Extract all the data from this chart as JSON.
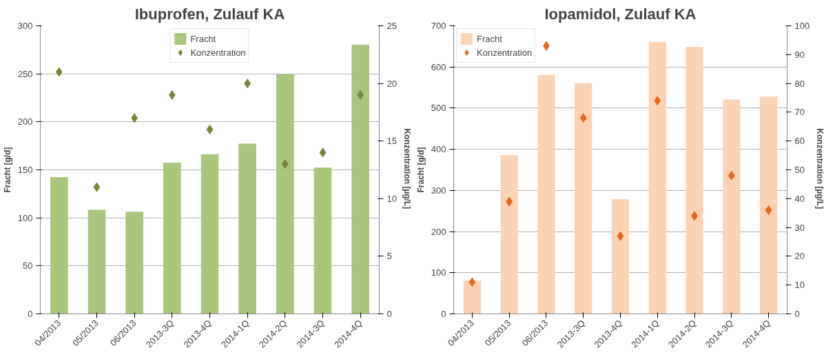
{
  "chart_data": [
    {
      "type": "bar",
      "title": "Ibuprofen, Zulauf KA",
      "ylabel": "Fracht [g/d]",
      "y2label": "Konzentration  [µg/L]",
      "categories": [
        "04/2013",
        "05/2013",
        "06/2013",
        "2013-3Q",
        "2013-4Q",
        "2014-1Q",
        "2014-2Q",
        "2014-3Q",
        "2014-4Q"
      ],
      "series": [
        {
          "name": "Fracht",
          "color": "#a8c67c",
          "values": [
            142,
            108,
            106,
            157,
            166,
            177,
            249,
            152,
            280
          ]
        },
        {
          "name": "Konzentration",
          "type": "scatter",
          "axis": "y2",
          "color": "#77853a",
          "values": [
            21,
            11,
            17,
            19,
            16,
            20,
            13,
            14,
            19
          ]
        }
      ],
      "ylim": [
        0,
        300
      ],
      "yticks": [
        0,
        50,
        100,
        150,
        200,
        250,
        300
      ],
      "y2lim": [
        0,
        25
      ],
      "y2ticks": [
        0,
        5,
        10,
        15,
        20,
        25
      ],
      "grid": "y",
      "legend": "top",
      "marker": "diamond"
    },
    {
      "type": "bar",
      "title": "Iopamidol, Zulauf KA",
      "ylabel": "Fracht [g/d]",
      "y2label": "Konzentration  [µg/L]",
      "categories": [
        "04/2013",
        "05/2013",
        "06/2013",
        "2013-3Q",
        "2013-4Q",
        "2014-1Q",
        "2014-2Q",
        "2014-3Q",
        "2014-4Q"
      ],
      "series": [
        {
          "name": "Fracht",
          "color": "#fbd3b3",
          "values": [
            80,
            385,
            580,
            560,
            278,
            660,
            648,
            520,
            527
          ]
        },
        {
          "name": "Konzentration",
          "type": "scatter",
          "axis": "y2",
          "color": "#e8661c",
          "values": [
            11,
            39,
            93,
            68,
            27,
            74,
            34,
            48,
            36
          ]
        }
      ],
      "ylim": [
        0,
        700
      ],
      "yticks": [
        0,
        100,
        200,
        300,
        400,
        500,
        600,
        700
      ],
      "y2lim": [
        0,
        100
      ],
      "y2ticks": [
        0,
        10,
        20,
        30,
        40,
        50,
        60,
        70,
        80,
        90,
        100
      ],
      "grid": "y",
      "legend": "top left",
      "marker": "diamond"
    }
  ]
}
